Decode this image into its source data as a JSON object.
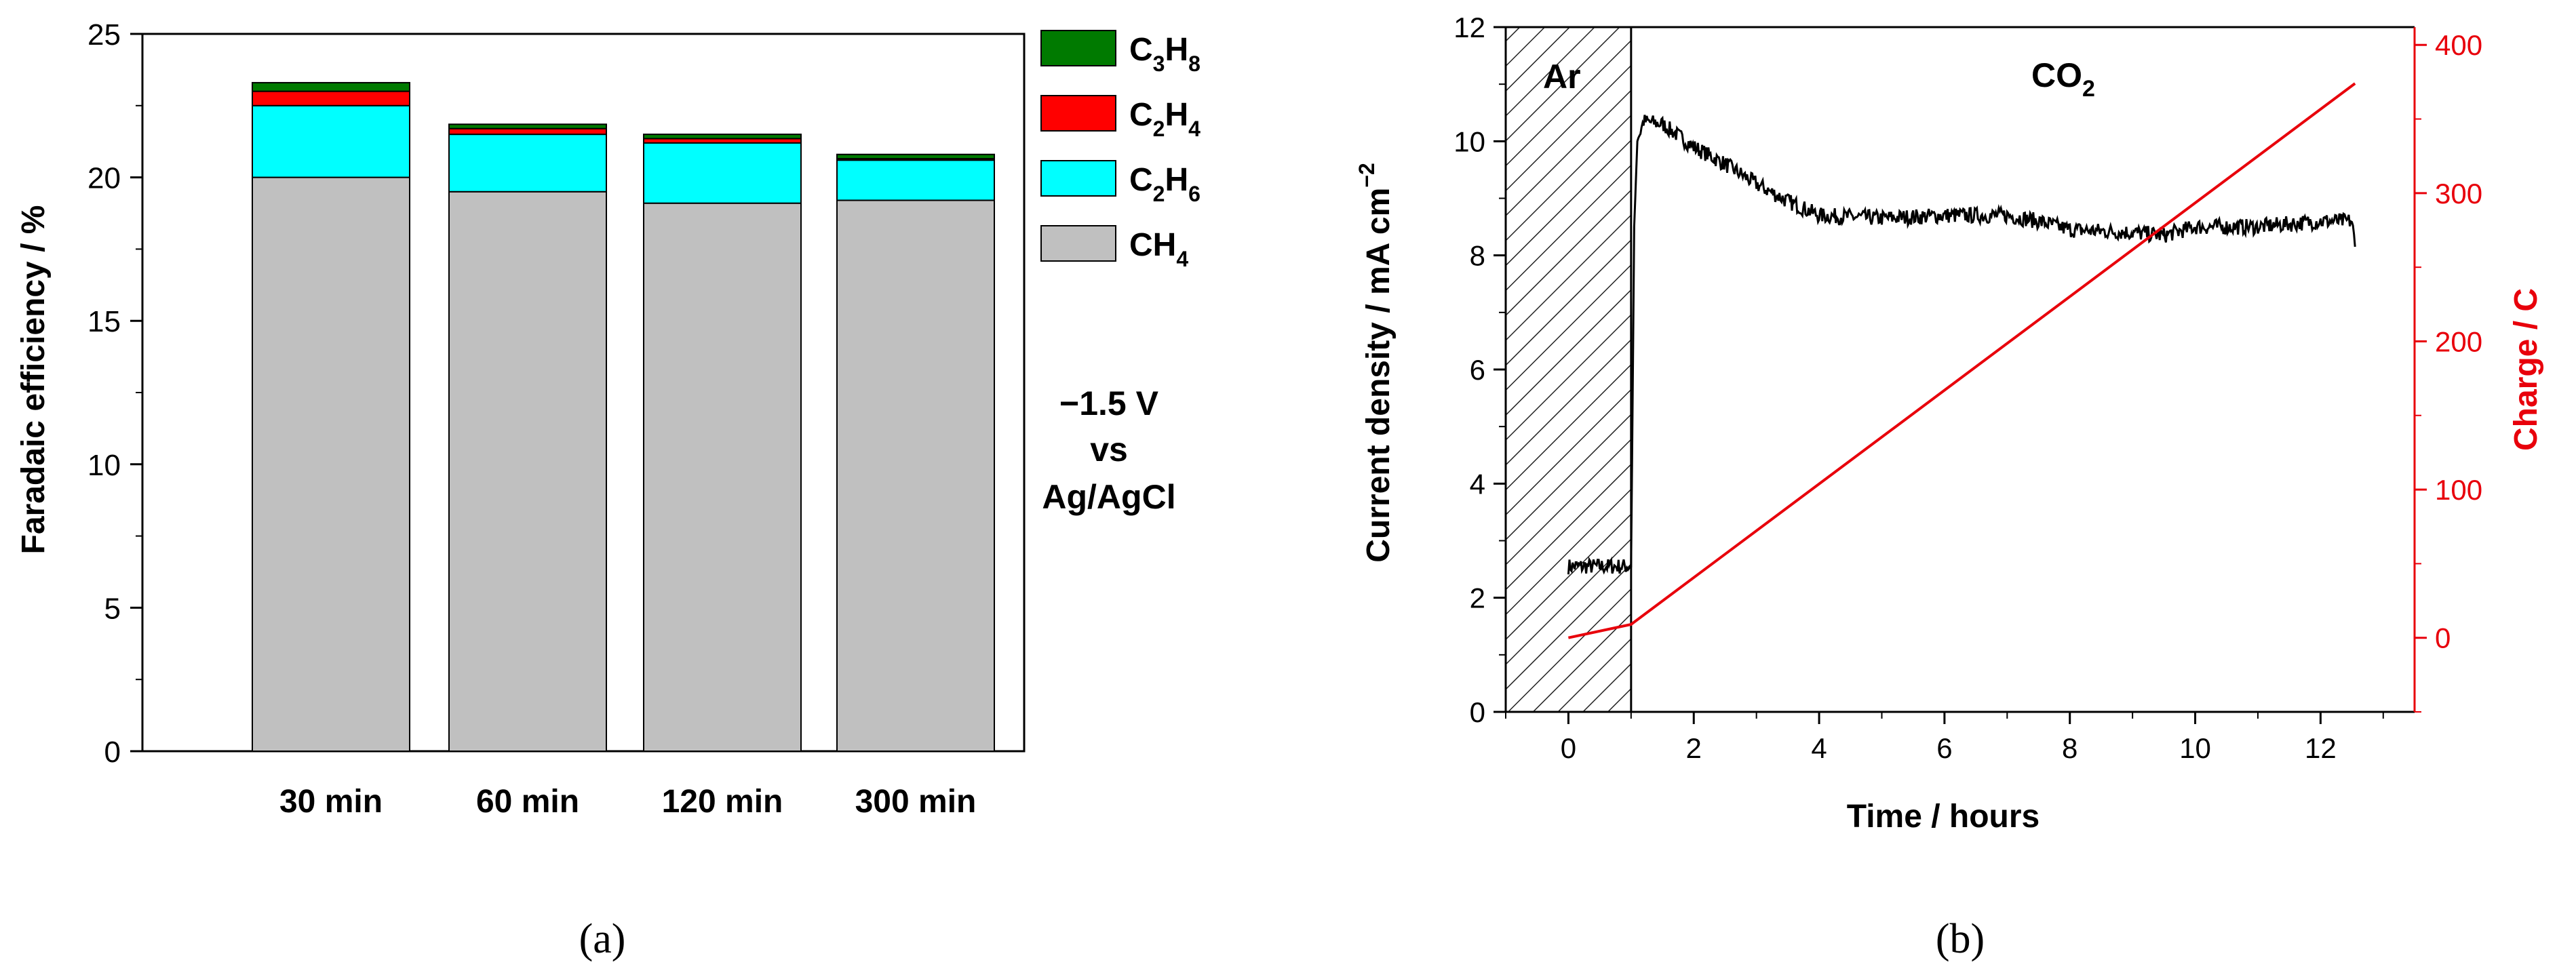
{
  "chart_data": [
    {
      "panel": "(a)",
      "type": "bar",
      "stacked": true,
      "categories": [
        "30 min",
        "60 min",
        "120 min",
        "300 min"
      ],
      "series": [
        {
          "name": "CH4",
          "label_main": "CH",
          "label_sub": "4",
          "color": "#c0c0c0",
          "values": [
            20.0,
            19.5,
            19.1,
            19.2
          ]
        },
        {
          "name": "C2H6",
          "label_main": "C",
          "label_sub": "2",
          "label_main2": "H",
          "label_sub2": "6",
          "color": "#00ffff",
          "values": [
            2.5,
            2.0,
            2.1,
            1.4
          ]
        },
        {
          "name": "C2H4",
          "label_main": "C",
          "label_sub": "2",
          "label_main2": "H",
          "label_sub2": "4",
          "color": "#ff0000",
          "values": [
            0.5,
            0.2,
            0.15,
            0.05
          ]
        },
        {
          "name": "C3H8",
          "label_main": "C",
          "label_sub": "3",
          "label_main2": "H",
          "label_sub2": "8",
          "color": "#007a00",
          "values": [
            0.3,
            0.15,
            0.15,
            0.15
          ]
        }
      ],
      "ylabel": "Faradaic efficiency / %",
      "ylim": [
        0,
        25
      ],
      "yticks": [
        0,
        5,
        10,
        15,
        20,
        25
      ],
      "legend_position": "top-right",
      "annotation": [
        "−1.5 V",
        "vs",
        "Ag/AgCl"
      ]
    },
    {
      "panel": "(b)",
      "type": "line",
      "xlabel": "Time / hours",
      "xlim": [
        -1,
        13.5
      ],
      "xticks": [
        0,
        2,
        4,
        6,
        8,
        10,
        12
      ],
      "ylabel_main": "Current density / mA cm",
      "ylabel_sup": "−2",
      "ylim": [
        0,
        12
      ],
      "yticks": [
        0,
        2,
        4,
        6,
        8,
        10,
        12
      ],
      "ylabel2": "Charge / C",
      "y2lim": [
        -50,
        412
      ],
      "y2ticks": [
        0,
        100,
        200,
        300,
        400
      ],
      "region_labels": {
        "ar": "Ar",
        "co2_main": "CO",
        "co2_sub": "2"
      },
      "hatched_region_x": [
        -1,
        1
      ],
      "series": [
        {
          "name": "Current density",
          "axis": "left",
          "color": "#000000",
          "x": [
            0,
            0.5,
            1.0,
            1.05,
            1.1,
            1.2,
            1.5,
            2,
            2.5,
            3,
            3.5,
            4,
            5,
            6,
            7,
            7.5,
            8,
            9,
            9.5,
            10,
            11,
            12,
            12.5,
            12.55
          ],
          "y": [
            2.55,
            2.55,
            2.55,
            8.5,
            10.0,
            10.35,
            10.3,
            9.9,
            9.6,
            9.25,
            8.95,
            8.7,
            8.65,
            8.7,
            8.7,
            8.6,
            8.45,
            8.4,
            8.35,
            8.5,
            8.5,
            8.6,
            8.6,
            8.15
          ]
        },
        {
          "name": "Charge",
          "axis": "right",
          "color": "#e8000b",
          "x": [
            0,
            1,
            12.55
          ],
          "y": [
            0,
            9,
            374
          ]
        }
      ]
    }
  ],
  "panel_labels": [
    "(a)",
    "(b)"
  ]
}
